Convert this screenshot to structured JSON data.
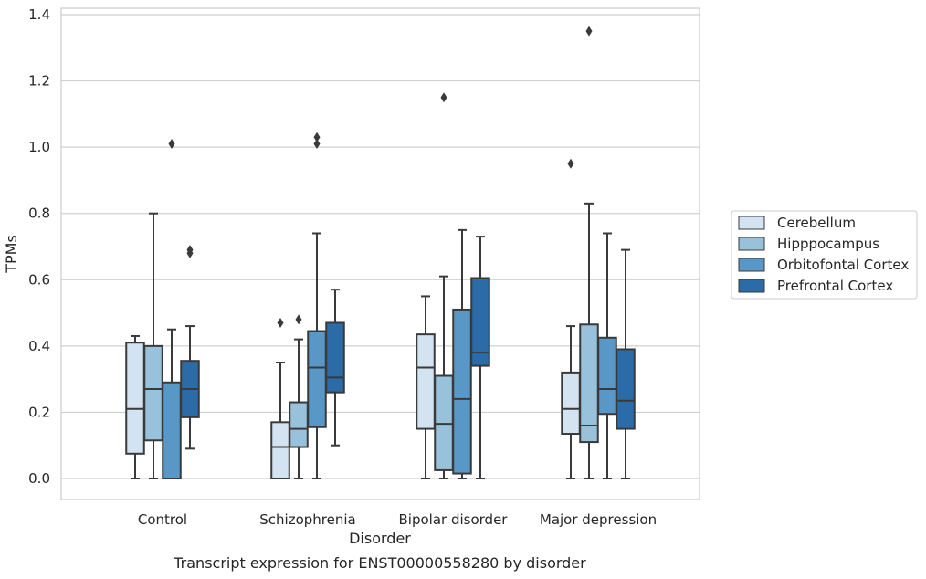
{
  "caption": "Transcript expression for ENST00000558280 by disorder",
  "chart_data": {
    "type": "box",
    "xlabel": "Disorder",
    "ylabel": "TPMs",
    "ylim": [
      -0.065,
      1.42
    ],
    "yticks": [
      "0.0",
      "0.2",
      "0.4",
      "0.6",
      "0.8",
      "1.0",
      "1.2",
      "1.4"
    ],
    "ytick_values": [
      0,
      0.2,
      0.4,
      0.6,
      0.8,
      1.0,
      1.2,
      1.4
    ],
    "grid": "horizontal",
    "legend_position": "right",
    "categories": [
      "Control",
      "Schizophrenia",
      "Bipolar disorder",
      "Major depression"
    ],
    "series": [
      {
        "name": "Cerebellum",
        "color": "#d4e3f1",
        "boxes": [
          {
            "whislo": 0.0,
            "q1": 0.075,
            "med": 0.21,
            "q3": 0.41,
            "whishi": 0.43,
            "fliers": []
          },
          {
            "whislo": 0.0,
            "q1": 0.0,
            "med": 0.095,
            "q3": 0.17,
            "whishi": 0.35,
            "fliers": [
              0.47
            ]
          },
          {
            "whislo": 0.0,
            "q1": 0.15,
            "med": 0.335,
            "q3": 0.435,
            "whishi": 0.55,
            "fliers": []
          },
          {
            "whislo": 0.0,
            "q1": 0.135,
            "med": 0.21,
            "q3": 0.32,
            "whishi": 0.46,
            "fliers": [
              0.95
            ]
          }
        ]
      },
      {
        "name": "Hipppocampus",
        "color": "#98c1db",
        "boxes": [
          {
            "whislo": 0.0,
            "q1": 0.115,
            "med": 0.27,
            "q3": 0.4,
            "whishi": 0.8,
            "fliers": []
          },
          {
            "whislo": 0.0,
            "q1": 0.095,
            "med": 0.15,
            "q3": 0.23,
            "whishi": 0.42,
            "fliers": [
              0.48
            ]
          },
          {
            "whislo": 0.0,
            "q1": 0.025,
            "med": 0.165,
            "q3": 0.31,
            "whishi": 0.61,
            "fliers": [
              1.15
            ]
          },
          {
            "whislo": 0.0,
            "q1": 0.11,
            "med": 0.16,
            "q3": 0.465,
            "whishi": 0.83,
            "fliers": [
              1.35
            ]
          }
        ]
      },
      {
        "name": "Orbitofontal Cortex",
        "color": "#5998c6",
        "boxes": [
          {
            "whislo": 0.0,
            "q1": 0.0,
            "med": 0.0,
            "q3": 0.29,
            "whishi": 0.45,
            "fliers": [
              1.01
            ]
          },
          {
            "whislo": 0.0,
            "q1": 0.155,
            "med": 0.335,
            "q3": 0.445,
            "whishi": 0.74,
            "fliers": [
              1.01,
              1.03
            ]
          },
          {
            "whislo": 0.0,
            "q1": 0.015,
            "med": 0.24,
            "q3": 0.51,
            "whishi": 0.75,
            "fliers": []
          },
          {
            "whislo": 0.0,
            "q1": 0.195,
            "med": 0.27,
            "q3": 0.425,
            "whishi": 0.74,
            "fliers": []
          }
        ]
      },
      {
        "name": "Prefrontal Cortex",
        "color": "#2b6ba8",
        "boxes": [
          {
            "whislo": 0.09,
            "q1": 0.185,
            "med": 0.27,
            "q3": 0.355,
            "whishi": 0.46,
            "fliers": [
              0.68,
              0.69
            ]
          },
          {
            "whislo": 0.1,
            "q1": 0.26,
            "med": 0.305,
            "q3": 0.47,
            "whishi": 0.57,
            "fliers": []
          },
          {
            "whislo": 0.0,
            "q1": 0.34,
            "med": 0.38,
            "q3": 0.605,
            "whishi": 0.73,
            "fliers": []
          },
          {
            "whislo": 0.0,
            "q1": 0.15,
            "med": 0.235,
            "q3": 0.39,
            "whishi": 0.69,
            "fliers": []
          }
        ]
      }
    ]
  }
}
